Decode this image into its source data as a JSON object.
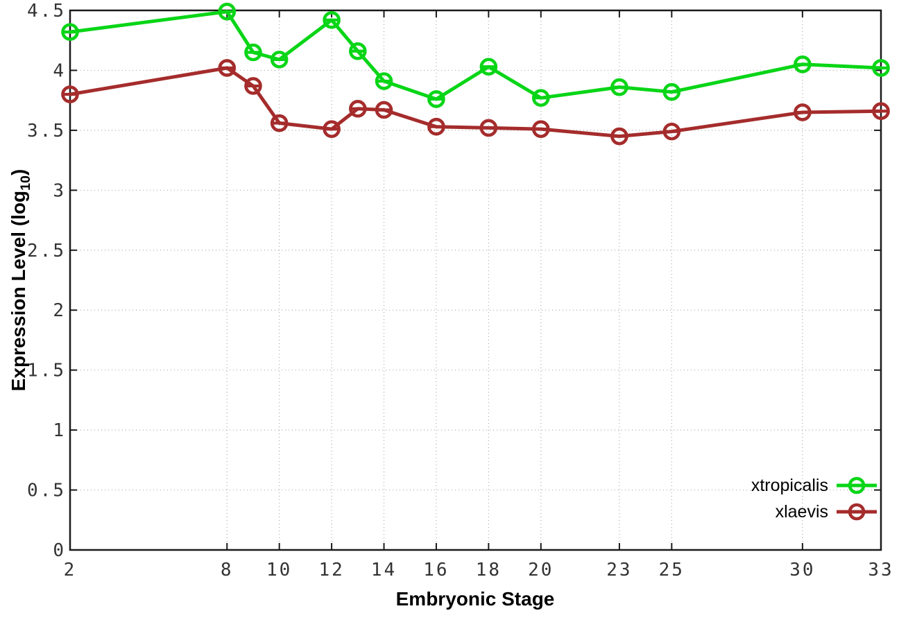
{
  "figure": {
    "background": "#ffffff",
    "border_color": "#1a1a1a",
    "grid_color": "#a9a9a9",
    "tick_label_color": "#333333"
  },
  "axis_titles": {
    "x": "Embryonic Stage",
    "y_prefix": "Expression Level (log",
    "y_sub": "10",
    "y_suffix": ")"
  },
  "chart_data": {
    "type": "line",
    "title": "",
    "xlabel": "Embryonic Stage",
    "ylabel": "Expression Level (log10)",
    "xlim": [
      2,
      33
    ],
    "ylim": [
      0,
      4.5
    ],
    "grid": true,
    "legend_position": "bottom-right",
    "marker": "open-circle-with-error-crossbar",
    "x": [
      2,
      8,
      9,
      10,
      12,
      13,
      14,
      16,
      18,
      20,
      23,
      25,
      30,
      33
    ],
    "x_ticks": [
      2,
      8,
      10,
      12,
      14,
      16,
      18,
      20,
      23,
      25,
      30,
      33
    ],
    "x_tick_labels": [
      "2",
      "8",
      "10",
      "12",
      "14",
      "16",
      "18",
      "20",
      "23",
      "25",
      "30",
      "33"
    ],
    "y_ticks": [
      0,
      0.5,
      1,
      1.5,
      2,
      2.5,
      3,
      3.5,
      4,
      4.5
    ],
    "y_tick_labels": [
      "0",
      "0.5",
      "1",
      "1.5",
      "2",
      "2.5",
      "3",
      "3.5",
      "4",
      "4.5"
    ],
    "series": [
      {
        "name": "xtropicalis",
        "color": "#09d517",
        "values": [
          4.32,
          4.49,
          4.15,
          4.09,
          4.42,
          4.16,
          3.91,
          3.76,
          4.03,
          3.77,
          3.86,
          3.82,
          4.05,
          4.02
        ]
      },
      {
        "name": "xlaevis",
        "color": "#a52c2c",
        "values": [
          3.8,
          4.02,
          3.87,
          3.56,
          3.51,
          3.68,
          3.67,
          3.53,
          3.52,
          3.51,
          3.45,
          3.49,
          3.65,
          3.66
        ]
      }
    ]
  }
}
